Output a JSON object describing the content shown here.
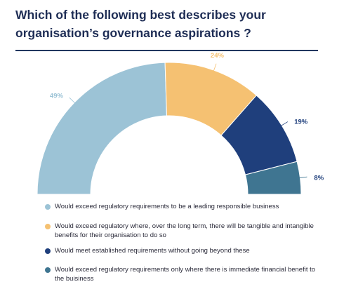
{
  "title": "Which of the following best describes your organisation’s governance aspirations ?",
  "chart_data": {
    "type": "pie",
    "variant": "semi-donut",
    "slices": [
      {
        "label": "Would exceed regulatory requirements to be a leading responsible business",
        "value": 49,
        "display": "49%",
        "color": "#9cc3d6"
      },
      {
        "label": "Would exceed regulatory where, over the long term, there will be tangible and intangible benefits for their organisation to do so",
        "value": 24,
        "display": "24%",
        "color": "#f5c172"
      },
      {
        "label": "Would meet established requirements without going beyond these",
        "value": 19,
        "display": "19%",
        "color": "#1f3f7c"
      },
      {
        "label": "Would exceed regulatory requirements only where there is immediate financial benefit to the buisiness",
        "value": 8,
        "display": "8%",
        "color": "#3f7591"
      }
    ],
    "legend_position": "bottom"
  }
}
